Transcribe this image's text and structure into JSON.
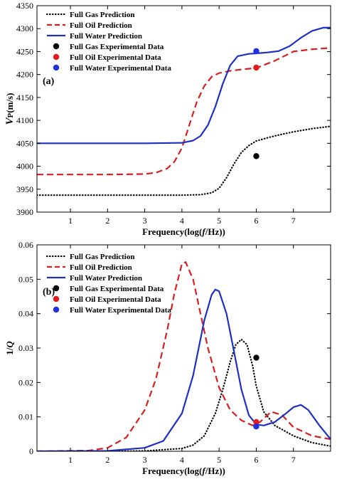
{
  "chart_data": [
    {
      "type": "line",
      "panel_label": "(a)",
      "xlabel": "Frequency(log(f/Hz))",
      "ylabel": "Vp(m/s)",
      "xlim": [
        0.1,
        8.0
      ],
      "ylim": [
        3900,
        4350
      ],
      "xticks": [
        1,
        2,
        3,
        4,
        5,
        6,
        7
      ],
      "yticks": [
        3900,
        3950,
        4000,
        4050,
        4100,
        4150,
        4200,
        4250,
        4300,
        4350
      ],
      "legend_position": "top-left",
      "grid": false,
      "series": [
        {
          "name": "Full Gas Prediction",
          "style": "dotted",
          "color": "#000000",
          "x": [
            0.1,
            1,
            2,
            3,
            4,
            4.5,
            4.8,
            5.0,
            5.2,
            5.4,
            5.6,
            5.8,
            6.0,
            6.3,
            6.6,
            7.0,
            7.5,
            8.0
          ],
          "y": [
            3937,
            3937,
            3937,
            3937,
            3937,
            3938,
            3942,
            3952,
            3975,
            4005,
            4030,
            4045,
            4055,
            4062,
            4068,
            4075,
            4082,
            4087
          ]
        },
        {
          "name": "Full Oil Prediction",
          "style": "dashed",
          "color": "#d42020",
          "x": [
            0.1,
            1,
            2,
            3,
            3.3,
            3.6,
            3.8,
            4.0,
            4.2,
            4.4,
            4.6,
            4.8,
            5.0,
            5.3,
            5.6,
            6.0,
            6.5,
            7.0,
            7.5,
            8.0
          ],
          "y": [
            3982,
            3982,
            3982,
            3983,
            3986,
            3995,
            4010,
            4040,
            4090,
            4140,
            4175,
            4195,
            4203,
            4208,
            4211,
            4214,
            4230,
            4250,
            4255,
            4258
          ]
        },
        {
          "name": "Full Water Prediction",
          "style": "solid",
          "color": "#1f2fc4",
          "x": [
            0.1,
            1,
            2,
            3,
            4,
            4.3,
            4.5,
            4.7,
            4.9,
            5.1,
            5.3,
            5.5,
            5.8,
            6.0,
            6.3,
            6.6,
            6.9,
            7.2,
            7.5,
            7.8,
            8.0
          ],
          "y": [
            4050,
            4050,
            4050,
            4050,
            4051,
            4056,
            4066,
            4090,
            4130,
            4180,
            4220,
            4240,
            4245,
            4246,
            4248,
            4251,
            4262,
            4280,
            4295,
            4302,
            4302
          ]
        }
      ],
      "points": [
        {
          "name": "Full Gas Experimental Data",
          "color": "#000000",
          "x": 6.0,
          "y": 4022
        },
        {
          "name": "Full Oil Experimental Data",
          "color": "#e41a1c",
          "x": 6.0,
          "y": 4215
        },
        {
          "name": "Full Water Experimental Data",
          "color": "#1f2fe0",
          "x": 6.0,
          "y": 4251
        }
      ]
    },
    {
      "type": "line",
      "panel_label": "(b)",
      "xlabel": "Frequency(log(f/Hz))",
      "ylabel": "1/Q",
      "xlim": [
        0.1,
        8.0
      ],
      "ylim": [
        0,
        0.06
      ],
      "xticks": [
        1,
        2,
        3,
        4,
        5,
        6,
        7
      ],
      "yticks": [
        0,
        0.01,
        0.02,
        0.03,
        0.04,
        0.05,
        0.06
      ],
      "legend_position": "top-left",
      "grid": false,
      "series": [
        {
          "name": "Full Gas Prediction",
          "style": "dotted",
          "color": "#000000",
          "x": [
            0.1,
            2,
            3,
            4,
            4.3,
            4.6,
            4.9,
            5.1,
            5.3,
            5.45,
            5.6,
            5.75,
            5.9,
            6.0,
            6.2,
            6.5,
            7.0,
            7.5,
            8.0
          ],
          "y": [
            0,
            0,
            0.0001,
            0.0008,
            0.0018,
            0.0045,
            0.011,
            0.018,
            0.026,
            0.031,
            0.0325,
            0.031,
            0.025,
            0.019,
            0.0115,
            0.0075,
            0.0045,
            0.0025,
            0.0015
          ]
        },
        {
          "name": "Full Oil Prediction",
          "style": "dashed",
          "color": "#d42020",
          "x": [
            0.1,
            1.5,
            2,
            2.5,
            3,
            3.3,
            3.6,
            3.8,
            4.0,
            4.1,
            4.3,
            4.5,
            4.7,
            5.0,
            5.3,
            5.6,
            5.9,
            6.1,
            6.4,
            6.7,
            7.0,
            7.5,
            8.0
          ],
          "y": [
            0,
            0.0002,
            0.001,
            0.004,
            0.012,
            0.021,
            0.035,
            0.046,
            0.0545,
            0.055,
            0.05,
            0.04,
            0.03,
            0.0185,
            0.012,
            0.009,
            0.0075,
            0.0085,
            0.0115,
            0.0105,
            0.007,
            0.0045,
            0.0035
          ]
        },
        {
          "name": "Full Water Prediction",
          "style": "solid",
          "color": "#1f2fc4",
          "x": [
            0.1,
            2,
            3,
            3.5,
            4.0,
            4.3,
            4.6,
            4.8,
            4.9,
            5.0,
            5.2,
            5.4,
            5.6,
            5.8,
            6.0,
            6.2,
            6.5,
            6.8,
            7.0,
            7.2,
            7.4,
            7.7,
            8.0
          ],
          "y": [
            0,
            0.0001,
            0.001,
            0.003,
            0.011,
            0.022,
            0.038,
            0.0455,
            0.047,
            0.0465,
            0.04,
            0.029,
            0.018,
            0.0105,
            0.0078,
            0.0075,
            0.0085,
            0.011,
            0.0128,
            0.0135,
            0.012,
            0.0075,
            0.0035
          ]
        }
      ],
      "points": [
        {
          "name": "Full Gas Experimental Data",
          "color": "#000000",
          "x": 6.0,
          "y": 0.0272
        },
        {
          "name": "Full Oil Experimental Data",
          "color": "#e41a1c",
          "x": 6.0,
          "y": 0.0085
        },
        {
          "name": "Full Water Experimental Data",
          "color": "#1f2fe0",
          "x": 6.0,
          "y": 0.0072
        }
      ]
    }
  ]
}
